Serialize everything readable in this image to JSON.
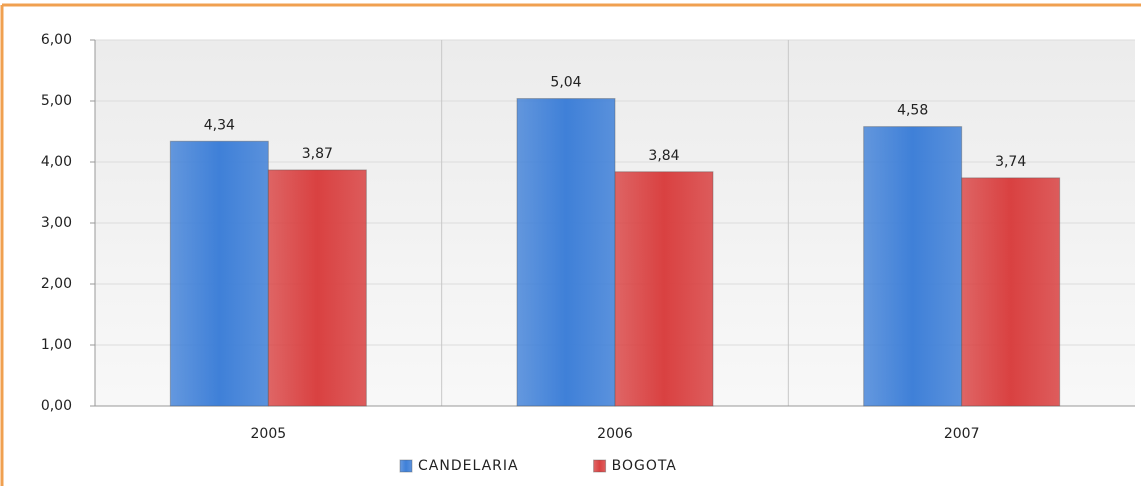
{
  "chart_data": {
    "type": "bar",
    "categories": [
      "2005",
      "2006",
      "2007"
    ],
    "series": [
      {
        "name": "CANDELARIA",
        "color": "#3f80d8",
        "values": [
          4.34,
          5.04,
          4.58
        ],
        "value_labels": [
          "4,34",
          "5,04",
          "4,58"
        ]
      },
      {
        "name": "BOGOTA",
        "color": "#d94141",
        "values": [
          3.87,
          3.84,
          3.74
        ],
        "value_labels": [
          "3,87",
          "3,84",
          "3,74"
        ]
      }
    ],
    "ylim": [
      0,
      6
    ],
    "yticks": [
      {
        "value": 0,
        "label": "0,00"
      },
      {
        "value": 1,
        "label": "1,00"
      },
      {
        "value": 2,
        "label": "2,00"
      },
      {
        "value": 3,
        "label": "3,00"
      },
      {
        "value": 4,
        "label": "4,00"
      },
      {
        "value": 5,
        "label": "5,00"
      },
      {
        "value": 6,
        "label": "6,00"
      }
    ],
    "grid": true,
    "legend": "bottom"
  }
}
